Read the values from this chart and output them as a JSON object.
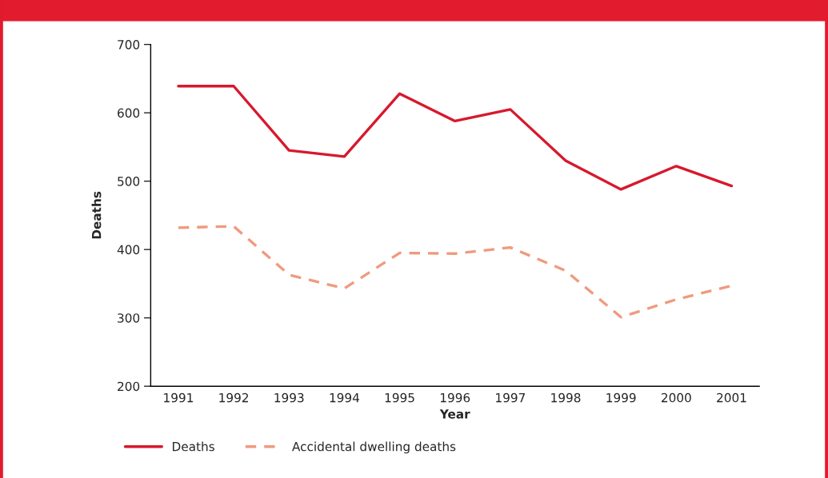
{
  "chart_data": {
    "type": "line",
    "xlabel": "Year",
    "ylabel": "Deaths",
    "categories": [
      "1991",
      "1992",
      "1993",
      "1994",
      "1995",
      "1996",
      "1997",
      "1998",
      "1999",
      "2000",
      "2001"
    ],
    "series": [
      {
        "name": "Deaths",
        "color": "#d7192d",
        "line_style": "solid",
        "values": [
          639,
          639,
          545,
          536,
          628,
          588,
          605,
          530,
          488,
          522,
          493
        ]
      },
      {
        "name": "Accidental dwelling deaths",
        "color": "#f09a7e",
        "line_style": "dashed",
        "values": [
          432,
          434,
          363,
          343,
          395,
          394,
          403,
          369,
          301,
          327,
          347
        ]
      }
    ],
    "ylim": [
      200,
      700
    ],
    "yticks": [
      200,
      300,
      400,
      500,
      600,
      700
    ],
    "grid": false,
    "legend": "bottom left",
    "marker": "none"
  }
}
